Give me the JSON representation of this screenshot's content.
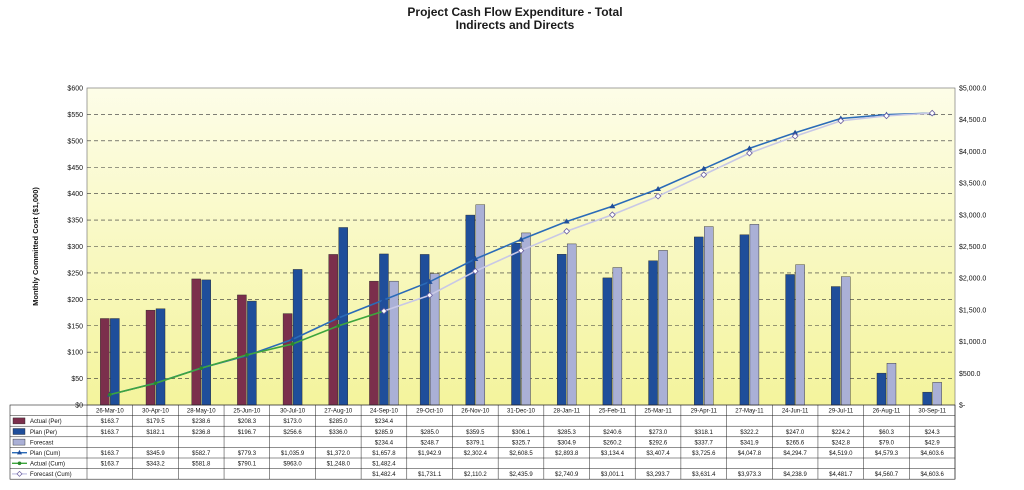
{
  "chart_data": {
    "type": "bar",
    "title": "Project Cash Flow Expenditure - Total",
    "subtitle": "Indirects and Directs",
    "ylabel": "Monthly Committed Cost ($1,000)",
    "ylim": [
      0,
      600
    ],
    "y_ticks": [
      "$0",
      "$50",
      "$100",
      "$150",
      "$200",
      "$250",
      "$300",
      "$350",
      "$400",
      "$450",
      "$500",
      "$550",
      "$600"
    ],
    "y2lim": [
      0,
      5000
    ],
    "y2_ticks": [
      "$-",
      "$500.0",
      "$1,000.0",
      "$1,500.0",
      "$2,000.0",
      "$2,500.0",
      "$3,000.0",
      "$3,500.0",
      "$4,000.0",
      "$4,500.0",
      "$5,000.0"
    ],
    "grid": true,
    "categories": [
      "26-Mar-10",
      "30-Apr-10",
      "28-May-10",
      "25-Jun-10",
      "30-Jul-10",
      "27-Aug-10",
      "24-Sep-10",
      "29-Oct-10",
      "26-Nov-10",
      "31-Dec-10",
      "28-Jan-11",
      "25-Feb-11",
      "25-Mar-11",
      "29-Apr-11",
      "27-May-11",
      "24-Jun-11",
      "29-Jul-11",
      "26-Aug-11",
      "30-Sep-11"
    ],
    "series": [
      {
        "name": "Actual (Per)",
        "kind": "bar",
        "color": "#7b2f4c",
        "values": [
          163.7,
          179.5,
          238.6,
          208.3,
          173.0,
          285.0,
          234.4,
          null,
          null,
          null,
          null,
          null,
          null,
          null,
          null,
          null,
          null,
          null,
          null
        ],
        "labels": [
          "$163.7",
          "$179.5",
          "$238.6",
          "$208.3",
          "$173.0",
          "$285.0",
          "$234.4",
          "",
          "",
          "",
          "",
          "",
          "",
          "",
          "",
          "",
          "",
          "",
          ""
        ]
      },
      {
        "name": "Plan (Per)",
        "kind": "bar",
        "color": "#1f4e9a",
        "values": [
          163.7,
          182.1,
          236.8,
          196.7,
          256.6,
          336.0,
          285.9,
          285.0,
          359.5,
          306.1,
          285.3,
          240.6,
          273.0,
          318.1,
          322.2,
          247.0,
          224.2,
          60.3,
          24.3
        ],
        "labels": [
          "$163.7",
          "$182.1",
          "$236.8",
          "$196.7",
          "$256.6",
          "$336.0",
          "$285.9",
          "$285.0",
          "$359.5",
          "$306.1",
          "$285.3",
          "$240.6",
          "$273.0",
          "$318.1",
          "$322.2",
          "$247.0",
          "$224.2",
          "$60.3",
          "$24.3"
        ]
      },
      {
        "name": "Forecast",
        "kind": "bar",
        "color": "#aab0d6",
        "values": [
          null,
          null,
          null,
          null,
          null,
          null,
          234.4,
          248.7,
          379.1,
          325.7,
          304.9,
          260.2,
          292.6,
          337.7,
          341.9,
          265.6,
          242.8,
          79.0,
          42.9
        ],
        "labels": [
          "",
          "",
          "",
          "",
          "",
          "",
          "$234.4",
          "$248.7",
          "$379.1",
          "$325.7",
          "$304.9",
          "$260.2",
          "$292.6",
          "$337.7",
          "$341.9",
          "$265.6",
          "$242.8",
          "$79.0",
          "$42.9"
        ]
      },
      {
        "name": "Plan (Cum)",
        "kind": "line",
        "axis": "right",
        "color": "#2a6bb8",
        "values": [
          163.7,
          345.9,
          582.7,
          779.3,
          1035.9,
          1372.0,
          1657.8,
          1942.9,
          2302.4,
          2608.5,
          2893.8,
          3134.4,
          3407.4,
          3725.6,
          4047.8,
          4294.7,
          4519.0,
          4579.3,
          4603.6
        ],
        "labels": [
          "$163.7",
          "$345.9",
          "$582.7",
          "$779.3",
          "$1,035.9",
          "$1,372.0",
          "$1,657.8",
          "$1,942.9",
          "$2,302.4",
          "$2,608.5",
          "$2,893.8",
          "$3,134.4",
          "$3,407.4",
          "$3,725.6",
          "$4,047.8",
          "$4,294.7",
          "$4,519.0",
          "$4,579.3",
          "$4,603.6"
        ]
      },
      {
        "name": "Actual (Cum)",
        "kind": "line",
        "axis": "right",
        "color": "#3da53d",
        "values": [
          163.7,
          343.2,
          581.8,
          790.1,
          963.0,
          1248.0,
          1482.4,
          null,
          null,
          null,
          null,
          null,
          null,
          null,
          null,
          null,
          null,
          null,
          null
        ],
        "labels": [
          "$163.7",
          "$343.2",
          "$581.8",
          "$790.1",
          "$963.0",
          "$1,248.0",
          "$1,482.4",
          "",
          "",
          "",
          "",
          "",
          "",
          "",
          "",
          "",
          "",
          "",
          ""
        ]
      },
      {
        "name": "Forecast (Cum)",
        "kind": "line",
        "axis": "right",
        "color": "#c8c8e6",
        "values": [
          null,
          null,
          null,
          null,
          null,
          null,
          1482.4,
          1731.1,
          2110.2,
          2435.9,
          2740.9,
          3001.1,
          3293.7,
          3631.4,
          3973.3,
          4238.9,
          4481.7,
          4560.7,
          4603.6
        ],
        "labels": [
          "",
          "",
          "",
          "",
          "",
          "",
          "$1,482.4",
          "$1,731.1",
          "$2,110.2",
          "$2,435.9",
          "$2,740.9",
          "$3,001.1",
          "$3,293.7",
          "$3,631.4",
          "$3,973.3",
          "$4,238.9",
          "$4,481.7",
          "$4,560.7",
          "$4,603.6"
        ]
      }
    ]
  }
}
